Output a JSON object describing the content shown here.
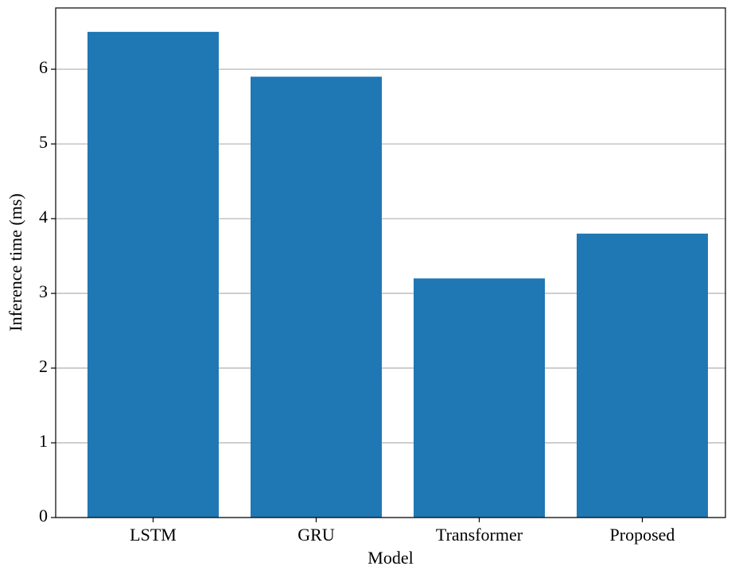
{
  "chart_data": {
    "type": "bar",
    "categories": [
      "LSTM",
      "GRU",
      "Transformer",
      "Proposed"
    ],
    "values": [
      6.5,
      5.9,
      3.2,
      3.8
    ],
    "color": "#1f77b4",
    "xlabel": "Model",
    "ylabel": "Inference time (ms)",
    "ylim": [
      0,
      6.82
    ],
    "yticks": [
      0,
      1,
      2,
      3,
      4,
      5,
      6
    ],
    "grid": true
  }
}
